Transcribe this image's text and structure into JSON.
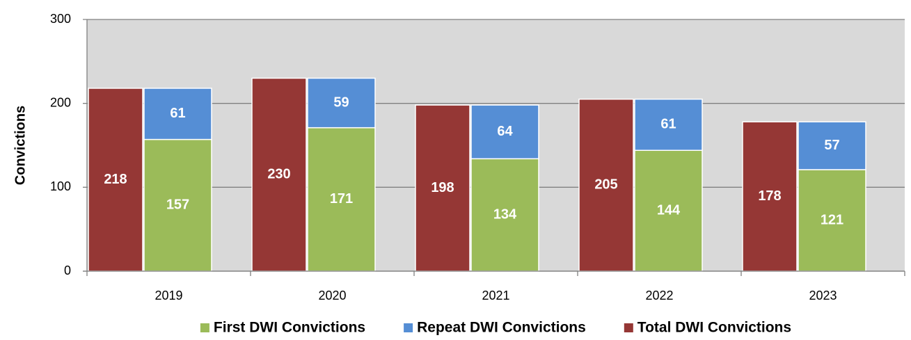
{
  "chart_data": {
    "type": "bar",
    "y_label": "Convictions",
    "categories": [
      "2019",
      "2020",
      "2021",
      "2022",
      "2023"
    ],
    "series": [
      {
        "name": "First DWI Convictions",
        "color": "#9bbb59",
        "stacked": true,
        "values": [
          157,
          171,
          134,
          144,
          121
        ]
      },
      {
        "name": "Repeat DWI Convictions",
        "color": "#558ed5",
        "stacked": true,
        "values": [
          61,
          59,
          64,
          61,
          57
        ]
      },
      {
        "name": "Total DWI Convictions",
        "color": "#953735",
        "stacked": false,
        "values": [
          218,
          230,
          198,
          205,
          178
        ]
      }
    ],
    "ylim": [
      0,
      300
    ],
    "yticks": [
      0,
      100,
      200,
      300
    ],
    "grid": true,
    "legend": "bottom"
  }
}
